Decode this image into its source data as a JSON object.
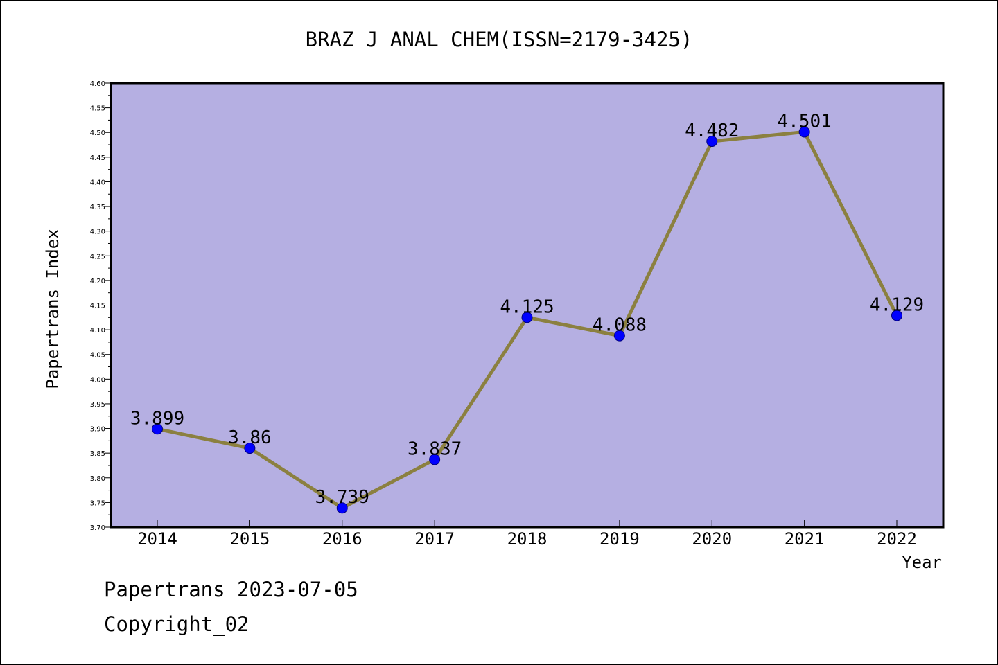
{
  "footer": {
    "date_line": "Papertrans 2023-07-05",
    "copyright": "Copyright_02"
  },
  "colors": {
    "plot_background": "#b5afe2",
    "line": "#8b8040",
    "marker": "#0000ff",
    "axis": "#000000"
  },
  "chart_data": {
    "type": "line",
    "title": "BRAZ J ANAL CHEM(ISSN=2179-3425)",
    "xlabel": "Year",
    "ylabel": "Papertrans Index",
    "categories": [
      "2014",
      "2015",
      "2016",
      "2017",
      "2018",
      "2019",
      "2020",
      "2021",
      "2022"
    ],
    "series": [
      {
        "values": [
          3.899,
          3.86,
          3.739,
          3.837,
          4.125,
          4.088,
          4.482,
          4.501,
          4.129
        ],
        "labels": [
          "3.899",
          "3.86",
          "3.739",
          "3.837",
          "4.125",
          "4.088",
          "4.482",
          "4.501",
          "4.129"
        ]
      }
    ],
    "ylim": [
      3.7,
      4.6
    ],
    "yticks": [
      "3.70",
      "3.75",
      "3.80",
      "3.85",
      "3.90",
      "3.95",
      "4.00",
      "4.05",
      "4.10",
      "4.15",
      "4.20",
      "4.25",
      "4.30",
      "4.35",
      "4.40",
      "4.45",
      "4.50",
      "4.55",
      "4.60"
    ],
    "grid": false,
    "legend": "none"
  }
}
